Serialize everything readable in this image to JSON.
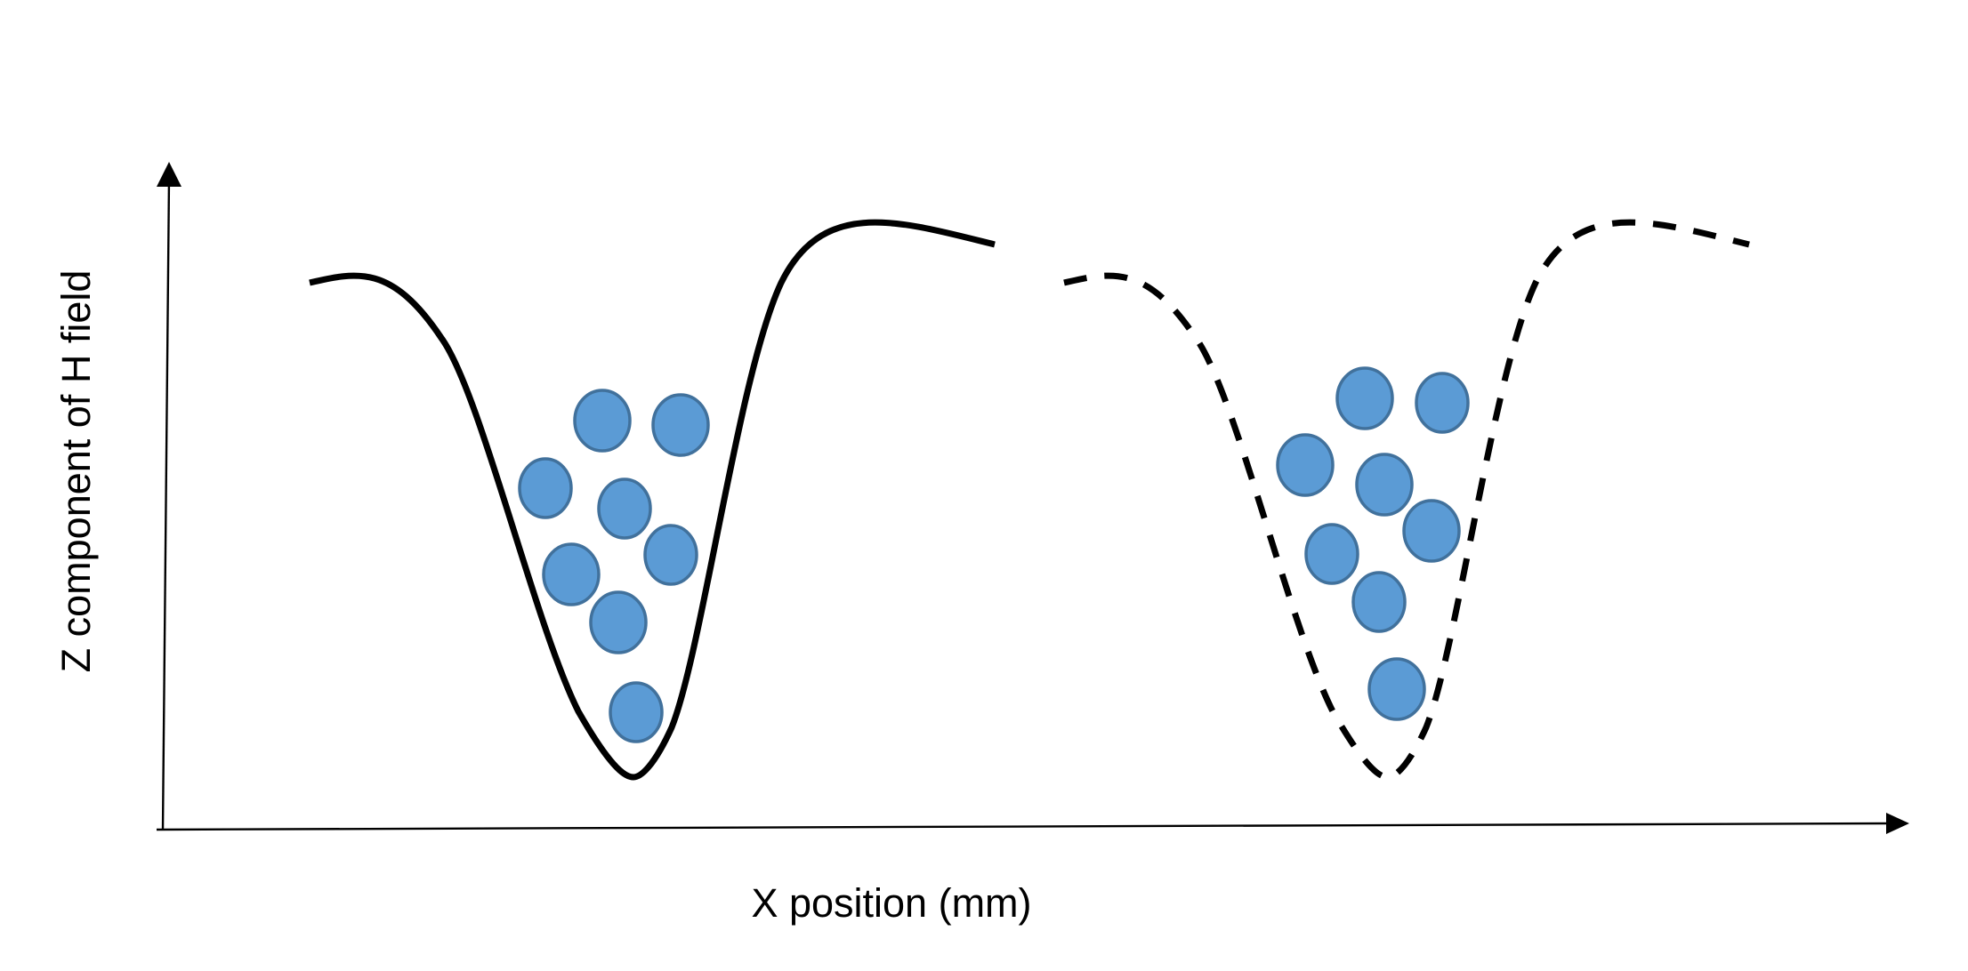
{
  "x_axis_label": "X position (mm)",
  "y_axis_label": "Z component of H field",
  "colors": {
    "particle_fill": "#5b9bd5",
    "particle_stroke": "#41719c",
    "line": "#000000",
    "background": "#ffffff"
  },
  "wells": [
    {
      "style": "solid",
      "particle_count": 8
    },
    {
      "style": "dashed",
      "particle_count": 8
    }
  ]
}
